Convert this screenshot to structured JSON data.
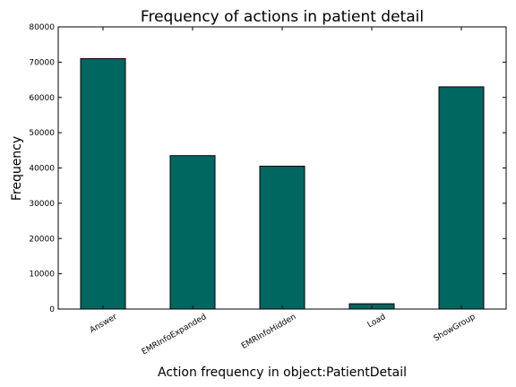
{
  "chart_data": {
    "type": "bar",
    "title": "Frequency of actions in patient detail",
    "xlabel": "Action frequency in object:PatientDetail",
    "ylabel": "Frequency",
    "categories": [
      "Answer",
      "EMRInfoExpanded",
      "EMRInfoHidden",
      "Load",
      "ShowGroup"
    ],
    "values": [
      71000,
      43500,
      40500,
      1500,
      63000
    ],
    "ylim": [
      0,
      80000
    ],
    "yticks": [
      0,
      10000,
      20000,
      30000,
      40000,
      50000,
      60000,
      70000,
      80000
    ],
    "grid": false,
    "legend": "none",
    "bar_color": "#006660",
    "bar_edge_color": "#000000"
  }
}
